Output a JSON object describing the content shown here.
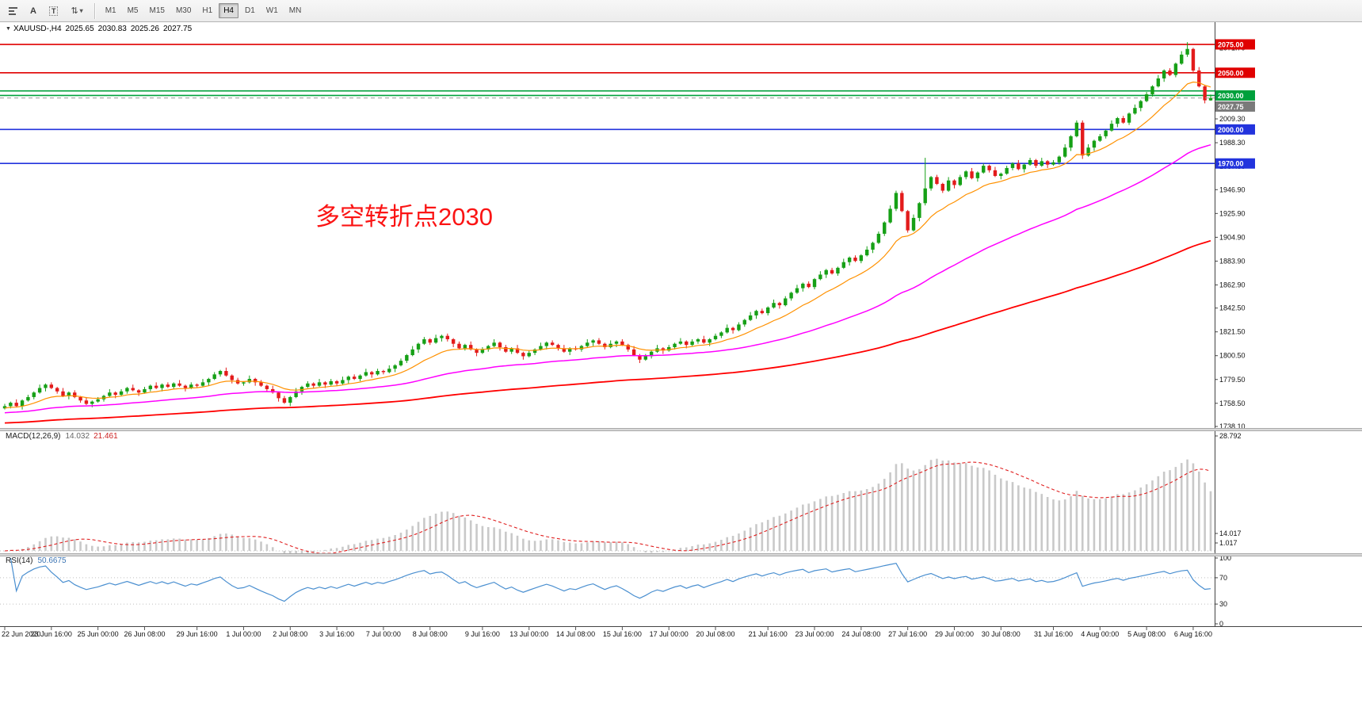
{
  "toolbar": {
    "text_tool_a": "A",
    "text_tool_t": "T",
    "arrows_glyph": "⇅",
    "caret": "▾",
    "timeframes": [
      "M1",
      "M5",
      "M15",
      "M30",
      "H1",
      "H4",
      "D1",
      "W1",
      "MN"
    ],
    "active_timeframe": "H4"
  },
  "header": {
    "triangle": "▼",
    "symbol_period": "XAUUSD-,H4",
    "open": "2025.65",
    "high": "2030.83",
    "low": "2025.26",
    "close": "2027.75"
  },
  "annotation": {
    "text": "多空转折点2030",
    "color": "#fb1414"
  },
  "chart_data": {
    "type": "candlestick",
    "symbol": "XAUUSD-",
    "period": "H4",
    "price_range": [
      1736,
      2082
    ],
    "hlines": [
      {
        "price": 2075.0,
        "color": "#e00000",
        "width": 1.6
      },
      {
        "price": 2050.0,
        "color": "#e00000",
        "width": 1.6
      },
      {
        "price": 2034.0,
        "color": "#00a03c",
        "width": 1.6
      },
      {
        "price": 2030.0,
        "color": "#00a03c",
        "width": 1.6
      },
      {
        "price": 2027.75,
        "color": "#9a9a9a",
        "width": 1,
        "dash": "5 4"
      },
      {
        "price": 2000.0,
        "color": "#2233dd",
        "width": 1.6
      },
      {
        "price": 1970.0,
        "color": "#2233dd",
        "width": 1.6
      }
    ],
    "price_axis": {
      "labels": [
        "2071.70",
        "2009.30",
        "1988.30",
        "1967.50",
        "1946.90",
        "1925.90",
        "1904.90",
        "1883.90",
        "1862.90",
        "1842.50",
        "1821.50",
        "1800.50",
        "1779.50",
        "1758.50",
        "1738.10"
      ],
      "badges": [
        {
          "text": "2075.00",
          "price": 2075.0,
          "bg": "#e00000"
        },
        {
          "text": "2050.00",
          "price": 2050.0,
          "bg": "#e00000"
        },
        {
          "text": "2030.00",
          "price": 2030.0,
          "bg": "#00a03c"
        },
        {
          "text": "2027.75",
          "price": 2027.75,
          "bg": "#7a7a7a"
        },
        {
          "text": "2000.00",
          "price": 2000.0,
          "bg": "#2233dd"
        },
        {
          "text": "1970.00",
          "price": 1970.0,
          "bg": "#2233dd"
        }
      ]
    },
    "moving_averages": [
      {
        "name": "ma-fast",
        "period": 13,
        "seed": 1754,
        "color": "#ff9100",
        "width": 1.2
      },
      {
        "name": "ma-medium",
        "period": 55,
        "seed": 1750,
        "color": "#ff00ff",
        "width": 1.5
      },
      {
        "name": "ma-slow",
        "period": 160,
        "seed": 1741,
        "color": "#ff0000",
        "width": 1.8
      }
    ],
    "indicators": {
      "macd": {
        "label": "MACD(12,26,9)",
        "value_main": "14.032",
        "value_signal": "21.461",
        "fast": 12,
        "slow": 26,
        "signal": 9,
        "axis_labels": [
          "28.792",
          "14.017",
          "1.017"
        ]
      },
      "rsi": {
        "label": "RSI(14)",
        "value": "50.6675",
        "period": 14,
        "levels": [
          70,
          30
        ],
        "axis_labels": [
          "100",
          "70",
          "30",
          "0"
        ]
      }
    },
    "time_labels": [
      {
        "i": 0,
        "t": "22 Jun 2020"
      },
      {
        "i": 8,
        "t": "23 Jun 16:00"
      },
      {
        "i": 16,
        "t": "25 Jun 00:00"
      },
      {
        "i": 24,
        "t": "26 Jun 08:00"
      },
      {
        "i": 33,
        "t": "29 Jun 16:00"
      },
      {
        "i": 41,
        "t": "1 Jul 00:00"
      },
      {
        "i": 49,
        "t": "2 Jul 08:00"
      },
      {
        "i": 57,
        "t": "3 Jul 16:00"
      },
      {
        "i": 65,
        "t": "7 Jul 00:00"
      },
      {
        "i": 73,
        "t": "8 Jul 08:00"
      },
      {
        "i": 82,
        "t": "9 Jul 16:00"
      },
      {
        "i": 90,
        "t": "13 Jul 00:00"
      },
      {
        "i": 98,
        "t": "14 Jul 08:00"
      },
      {
        "i": 106,
        "t": "15 Jul 16:00"
      },
      {
        "i": 114,
        "t": "17 Jul 00:00"
      },
      {
        "i": 122,
        "t": "20 Jul 08:00"
      },
      {
        "i": 131,
        "t": "21 Jul 16:00"
      },
      {
        "i": 139,
        "t": "23 Jul 00:00"
      },
      {
        "i": 147,
        "t": "24 Jul 08:00"
      },
      {
        "i": 155,
        "t": "27 Jul 16:00"
      },
      {
        "i": 163,
        "t": "29 Jul 00:00"
      },
      {
        "i": 171,
        "t": "30 Jul 08:00"
      },
      {
        "i": 180,
        "t": "31 Jul 16:00"
      },
      {
        "i": 188,
        "t": "4 Aug 00:00"
      },
      {
        "i": 196,
        "t": "5 Aug 08:00"
      },
      {
        "i": 204,
        "t": "6 Aug 16:00"
      }
    ],
    "candles": [
      [
        1754,
        1758,
        1753,
        1756
      ],
      [
        1756,
        1760,
        1754,
        1759
      ],
      [
        1759,
        1762,
        1755,
        1756
      ],
      [
        1756,
        1762,
        1753,
        1761
      ],
      [
        1761,
        1766,
        1760,
        1764
      ],
      [
        1764,
        1769,
        1762,
        1768
      ],
      [
        1768,
        1775,
        1767,
        1772
      ],
      [
        1772,
        1776,
        1769,
        1775
      ],
      [
        1775,
        1777,
        1771,
        1772
      ],
      [
        1772,
        1773,
        1767,
        1769
      ],
      [
        1769,
        1772,
        1764,
        1765
      ],
      [
        1765,
        1769,
        1762,
        1768
      ],
      [
        1768,
        1770,
        1763,
        1764
      ],
      [
        1764,
        1765,
        1759,
        1761
      ],
      [
        1761,
        1764,
        1757,
        1758
      ],
      [
        1758,
        1761,
        1755,
        1760
      ],
      [
        1760,
        1764,
        1759,
        1762
      ],
      [
        1762,
        1766,
        1760,
        1765
      ],
      [
        1765,
        1771,
        1764,
        1768
      ],
      [
        1768,
        1769,
        1763,
        1766
      ],
      [
        1766,
        1771,
        1765,
        1769
      ],
      [
        1769,
        1773,
        1767,
        1772
      ],
      [
        1772,
        1775,
        1769,
        1770
      ],
      [
        1770,
        1771,
        1765,
        1768
      ],
      [
        1768,
        1773,
        1767,
        1771
      ],
      [
        1771,
        1775,
        1769,
        1774
      ],
      [
        1774,
        1777,
        1771,
        1772
      ],
      [
        1772,
        1776,
        1769,
        1775
      ],
      [
        1775,
        1777,
        1772,
        1773
      ],
      [
        1773,
        1777,
        1771,
        1776
      ],
      [
        1776,
        1779,
        1773,
        1774
      ],
      [
        1774,
        1775,
        1769,
        1772
      ],
      [
        1772,
        1777,
        1771,
        1775
      ],
      [
        1775,
        1776,
        1772,
        1774
      ],
      [
        1774,
        1780,
        1773,
        1777
      ],
      [
        1777,
        1781,
        1774,
        1780
      ],
      [
        1780,
        1786,
        1779,
        1784
      ],
      [
        1784,
        1788,
        1782,
        1787
      ],
      [
        1787,
        1790,
        1782,
        1783
      ],
      [
        1783,
        1784,
        1776,
        1779
      ],
      [
        1779,
        1781,
        1775,
        1776
      ],
      [
        1776,
        1778,
        1774,
        1777
      ],
      [
        1777,
        1783,
        1776,
        1780
      ],
      [
        1780,
        1781,
        1774,
        1777
      ],
      [
        1777,
        1779,
        1773,
        1774
      ],
      [
        1774,
        1775,
        1769,
        1771
      ],
      [
        1771,
        1774,
        1767,
        1768
      ],
      [
        1768,
        1769,
        1760,
        1763
      ],
      [
        1763,
        1765,
        1758,
        1759
      ],
      [
        1759,
        1765,
        1756,
        1764
      ],
      [
        1764,
        1772,
        1763,
        1769
      ],
      [
        1769,
        1774,
        1766,
        1773
      ],
      [
        1773,
        1778,
        1772,
        1776
      ],
      [
        1776,
        1777,
        1772,
        1774
      ],
      [
        1774,
        1780,
        1773,
        1777
      ],
      [
        1777,
        1778,
        1772,
        1775
      ],
      [
        1775,
        1780,
        1774,
        1778
      ],
      [
        1778,
        1779,
        1774,
        1776
      ],
      [
        1776,
        1782,
        1775,
        1779
      ],
      [
        1779,
        1783,
        1776,
        1782
      ],
      [
        1782,
        1784,
        1779,
        1780
      ],
      [
        1780,
        1784,
        1778,
        1783
      ],
      [
        1783,
        1789,
        1782,
        1786
      ],
      [
        1786,
        1787,
        1781,
        1784
      ],
      [
        1784,
        1789,
        1783,
        1787
      ],
      [
        1787,
        1788,
        1784,
        1786
      ],
      [
        1786,
        1792,
        1785,
        1789
      ],
      [
        1789,
        1793,
        1786,
        1792
      ],
      [
        1792,
        1798,
        1791,
        1796
      ],
      [
        1796,
        1802,
        1794,
        1801
      ],
      [
        1801,
        1809,
        1800,
        1806
      ],
      [
        1806,
        1812,
        1803,
        1811
      ],
      [
        1811,
        1817,
        1810,
        1815
      ],
      [
        1815,
        1816,
        1810,
        1812
      ],
      [
        1812,
        1819,
        1811,
        1816
      ],
      [
        1816,
        1819,
        1813,
        1818
      ],
      [
        1818,
        1820,
        1813,
        1815
      ],
      [
        1815,
        1816,
        1808,
        1811
      ],
      [
        1811,
        1813,
        1806,
        1807
      ],
      [
        1807,
        1811,
        1805,
        1810
      ],
      [
        1810,
        1813,
        1805,
        1806
      ],
      [
        1806,
        1807,
        1800,
        1803
      ],
      [
        1803,
        1808,
        1802,
        1806
      ],
      [
        1806,
        1810,
        1804,
        1809
      ],
      [
        1809,
        1815,
        1808,
        1812
      ],
      [
        1812,
        1813,
        1805,
        1808
      ],
      [
        1808,
        1810,
        1803,
        1804
      ],
      [
        1804,
        1808,
        1802,
        1807
      ],
      [
        1807,
        1810,
        1802,
        1803
      ],
      [
        1803,
        1804,
        1797,
        1800
      ],
      [
        1800,
        1805,
        1799,
        1803
      ],
      [
        1803,
        1807,
        1801,
        1806
      ],
      [
        1806,
        1812,
        1805,
        1809
      ],
      [
        1809,
        1813,
        1806,
        1812
      ],
      [
        1812,
        1814,
        1809,
        1810
      ],
      [
        1810,
        1811,
        1805,
        1807
      ],
      [
        1807,
        1810,
        1803,
        1804
      ],
      [
        1804,
        1808,
        1801,
        1807
      ],
      [
        1807,
        1809,
        1805,
        1806
      ],
      [
        1806,
        1810,
        1804,
        1809
      ],
      [
        1809,
        1815,
        1808,
        1812
      ],
      [
        1812,
        1815,
        1809,
        1814
      ],
      [
        1814,
        1816,
        1810,
        1811
      ],
      [
        1811,
        1812,
        1806,
        1808
      ],
      [
        1808,
        1814,
        1807,
        1811
      ],
      [
        1811,
        1814,
        1808,
        1813
      ],
      [
        1813,
        1815,
        1809,
        1810
      ],
      [
        1810,
        1811,
        1804,
        1806
      ],
      [
        1806,
        1809,
        1800,
        1801
      ],
      [
        1801,
        1802,
        1794,
        1797
      ],
      [
        1797,
        1802,
        1796,
        1800
      ],
      [
        1800,
        1805,
        1798,
        1804
      ],
      [
        1804,
        1810,
        1803,
        1807
      ],
      [
        1807,
        1808,
        1802,
        1805
      ],
      [
        1805,
        1810,
        1804,
        1808
      ],
      [
        1808,
        1812,
        1806,
        1811
      ],
      [
        1811,
        1816,
        1810,
        1813
      ],
      [
        1813,
        1814,
        1807,
        1810
      ],
      [
        1810,
        1815,
        1809,
        1813
      ],
      [
        1813,
        1816,
        1811,
        1815
      ],
      [
        1815,
        1818,
        1811,
        1812
      ],
      [
        1812,
        1816,
        1809,
        1815
      ],
      [
        1815,
        1820,
        1814,
        1818
      ],
      [
        1818,
        1822,
        1816,
        1821
      ],
      [
        1821,
        1828,
        1820,
        1825
      ],
      [
        1825,
        1826,
        1820,
        1823
      ],
      [
        1823,
        1830,
        1822,
        1828
      ],
      [
        1828,
        1833,
        1826,
        1832
      ],
      [
        1832,
        1839,
        1831,
        1836
      ],
      [
        1836,
        1841,
        1833,
        1840
      ],
      [
        1840,
        1842,
        1837,
        1838
      ],
      [
        1838,
        1844,
        1836,
        1843
      ],
      [
        1843,
        1850,
        1842,
        1847
      ],
      [
        1847,
        1848,
        1842,
        1845
      ],
      [
        1845,
        1853,
        1844,
        1851
      ],
      [
        1851,
        1857,
        1849,
        1856
      ],
      [
        1856,
        1863,
        1855,
        1860
      ],
      [
        1860,
        1865,
        1857,
        1864
      ],
      [
        1864,
        1866,
        1860,
        1861
      ],
      [
        1861,
        1869,
        1859,
        1868
      ],
      [
        1868,
        1875,
        1867,
        1872
      ],
      [
        1872,
        1877,
        1869,
        1876
      ],
      [
        1876,
        1878,
        1872,
        1873
      ],
      [
        1873,
        1879,
        1871,
        1878
      ],
      [
        1878,
        1886,
        1877,
        1883
      ],
      [
        1883,
        1888,
        1880,
        1887
      ],
      [
        1887,
        1889,
        1883,
        1884
      ],
      [
        1884,
        1890,
        1882,
        1889
      ],
      [
        1889,
        1897,
        1888,
        1894
      ],
      [
        1894,
        1901,
        1891,
        1900
      ],
      [
        1900,
        1910,
        1899,
        1908
      ],
      [
        1908,
        1919,
        1906,
        1918
      ],
      [
        1918,
        1933,
        1917,
        1930
      ],
      [
        1930,
        1946,
        1928,
        1944
      ],
      [
        1944,
        1946,
        1927,
        1928
      ],
      [
        1928,
        1929,
        1909,
        1911
      ],
      [
        1911,
        1925,
        1910,
        1922
      ],
      [
        1922,
        1936,
        1919,
        1935
      ],
      [
        1935,
        1975,
        1933,
        1948
      ],
      [
        1948,
        1959,
        1946,
        1958
      ],
      [
        1958,
        1960,
        1951,
        1952
      ],
      [
        1952,
        1953,
        1944,
        1946
      ],
      [
        1946,
        1958,
        1945,
        1955
      ],
      [
        1955,
        1956,
        1948,
        1951
      ],
      [
        1951,
        1960,
        1950,
        1958
      ],
      [
        1958,
        1964,
        1956,
        1963
      ],
      [
        1963,
        1966,
        1956,
        1957
      ],
      [
        1957,
        1963,
        1954,
        1962
      ],
      [
        1962,
        1970,
        1961,
        1968
      ],
      [
        1968,
        1969,
        1962,
        1964
      ],
      [
        1964,
        1967,
        1958,
        1959
      ],
      [
        1959,
        1962,
        1956,
        1961
      ],
      [
        1961,
        1968,
        1960,
        1966
      ],
      [
        1966,
        1971,
        1964,
        1970
      ],
      [
        1970,
        1973,
        1964,
        1965
      ],
      [
        1965,
        1970,
        1962,
        1969
      ],
      [
        1969,
        1975,
        1968,
        1973
      ],
      [
        1973,
        1974,
        1966,
        1968
      ],
      [
        1968,
        1975,
        1967,
        1972
      ],
      [
        1972,
        1973,
        1966,
        1969
      ],
      [
        1969,
        1973,
        1968,
        1971
      ],
      [
        1971,
        1977,
        1969,
        1976
      ],
      [
        1976,
        1987,
        1975,
        1984
      ],
      [
        1984,
        1995,
        1981,
        1994
      ],
      [
        1994,
        2008,
        1993,
        2006
      ],
      [
        2006,
        2008,
        1974,
        1977
      ],
      [
        1977,
        1987,
        1976,
        1984
      ],
      [
        1984,
        1991,
        1981,
        1990
      ],
      [
        1990,
        1996,
        1989,
        1994
      ],
      [
        1994,
        2000,
        1992,
        1999
      ],
      [
        1999,
        2008,
        1998,
        2005
      ],
      [
        2005,
        2011,
        2002,
        2010
      ],
      [
        2010,
        2012,
        2005,
        2006
      ],
      [
        2006,
        2015,
        2004,
        2014
      ],
      [
        2014,
        2022,
        2013,
        2019
      ],
      [
        2019,
        2026,
        2016,
        2025
      ],
      [
        2025,
        2033,
        2024,
        2031
      ],
      [
        2031,
        2039,
        2029,
        2038
      ],
      [
        2038,
        2048,
        2037,
        2045
      ],
      [
        2045,
        2053,
        2042,
        2052
      ],
      [
        2052,
        2054,
        2047,
        2048
      ],
      [
        2048,
        2059,
        2046,
        2058
      ],
      [
        2058,
        2069,
        2057,
        2066
      ],
      [
        2066,
        2077,
        2064,
        2071
      ],
      [
        2071,
        2072,
        2050,
        2052
      ],
      [
        2052,
        2055,
        2037,
        2038
      ],
      [
        2038,
        2039,
        2023,
        2025.7
      ],
      [
        2025.65,
        2030.83,
        2025.26,
        2027.75
      ]
    ]
  }
}
